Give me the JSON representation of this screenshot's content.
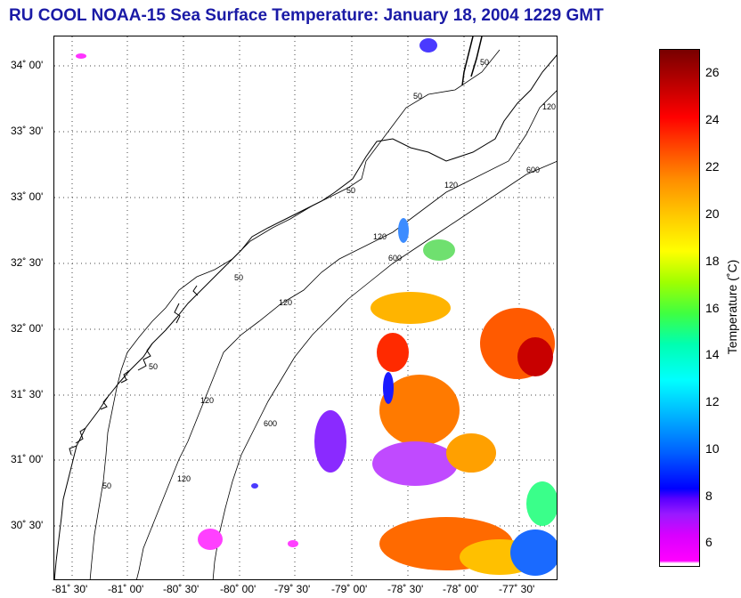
{
  "title": "RU COOL  NOAA-15  Sea Surface Temperature:  January 18, 2004 1229 GMT",
  "map": {
    "lat_labels": [
      "34˚ 00'",
      "33˚ 30'",
      "33˚ 00'",
      "32˚ 30'",
      "32˚ 00'",
      "31˚ 30'",
      "31˚ 00'",
      "30˚ 30'"
    ],
    "lon_labels": [
      "-81˚ 30'",
      "-81˚ 00'",
      "-80˚ 30'",
      "-80˚ 00'",
      "-79˚ 30'",
      "-79˚ 00'",
      "-78˚ 30'",
      "-78˚ 00'",
      "-77˚ 30'"
    ],
    "isobath_labels": [
      "50",
      "50",
      "50",
      "50",
      "50",
      "50",
      "120",
      "120",
      "120",
      "120",
      "120",
      "120",
      "600",
      "600",
      "600"
    ],
    "graticule": "dotted",
    "colors": {
      "title": "#1a1aa6",
      "coast": "#000000",
      "grid": "#000000"
    }
  },
  "colorbar": {
    "label": "Temperature (˚C)",
    "ticks": [
      "26",
      "24",
      "22",
      "20",
      "18",
      "16",
      "14",
      "12",
      "10",
      "8",
      "6"
    ],
    "min": 5,
    "max": 27,
    "colormap": "jet-like (magenta → blue → cyan → green → yellow → orange → red → dark red)"
  }
}
